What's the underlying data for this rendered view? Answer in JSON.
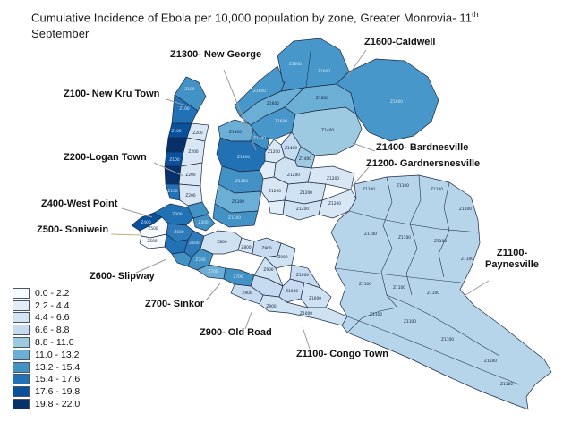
{
  "title": {
    "part1": "Cumulative Incidence of Ebola per 10,000 population by zone,  Greater Monrovia- 11",
    "sup": "th",
    "part2": "September"
  },
  "legend": {
    "items": [
      {
        "label": "0.0 - 2.2",
        "color": "#f7fbff"
      },
      {
        "label": "2.2 - 4.4",
        "color": "#e3edf8"
      },
      {
        "label": "4.4 - 6.6",
        "color": "#d3e4f3"
      },
      {
        "label": "6.6 - 8.8",
        "color": "#c6dbef"
      },
      {
        "label": "8.8 - 11.0",
        "color": "#9ecae1"
      },
      {
        "label": "11.0 - 13.2",
        "color": "#6baed6"
      },
      {
        "label": "13.2 - 15.4",
        "color": "#4292c6"
      },
      {
        "label": "15.4 - 17.6",
        "color": "#2171b5"
      },
      {
        "label": "17.6 - 19.8",
        "color": "#0a519c"
      },
      {
        "label": "19.8 - 22.0",
        "color": "#08306b"
      }
    ]
  },
  "map": {
    "fills": {
      "dark_navy": "#08306b",
      "navy": "#0a519c",
      "deep_blue": "#2171b5",
      "slip_blue": "#2f7ab8",
      "med_blue": "#4292c6",
      "cald_blue": "#4897ca",
      "sky_blue": "#6baed6",
      "pale_blue": "#9ecae1",
      "lighter_blue": "#b6d5ea",
      "pale2": "#c6dbef",
      "pale3": "#cfe2f2",
      "pale4": "#d9e7f5",
      "pale5": "#e3edf8",
      "white_zone": "#f7fbff"
    },
    "callouts": [
      {
        "id": "new-george",
        "text": "Z1300- New George"
      },
      {
        "id": "caldwell",
        "text": "Z1600-Caldwell"
      },
      {
        "id": "new-kru-town",
        "text": "Z100- New Kru Town"
      },
      {
        "id": "logan-town",
        "text": "Z200-Logan Town"
      },
      {
        "id": "bardnesville",
        "text": "Z1400- Bardnesville"
      },
      {
        "id": "gardnersville",
        "text": "Z1200- Gardnersnesville"
      },
      {
        "id": "west-point",
        "text": "Z400-West Point"
      },
      {
        "id": "soniwein",
        "text": "Z500- Soniwein"
      },
      {
        "id": "slipway",
        "text": "Z600- Slipway"
      },
      {
        "id": "sinkor",
        "text": "Z700- Sinkor"
      },
      {
        "id": "old-road",
        "text": "Z900- Old Road"
      },
      {
        "id": "congo-town",
        "text": "Z1100- Congo Town"
      },
      {
        "id": "paynesville",
        "text": "Z1100- Paynesville"
      }
    ],
    "zone_codes": [
      [
        "Z100",
        212,
        101,
        1
      ],
      [
        "Z100",
        206,
        123,
        1
      ],
      [
        "Z100",
        197,
        148,
        1
      ],
      [
        "Z100",
        195,
        180,
        1
      ],
      [
        "Z100",
        193,
        215,
        1
      ],
      [
        "Z200",
        221,
        150
      ],
      [
        "Z200",
        216,
        171
      ],
      [
        "Z200",
        213,
        197
      ],
      [
        "Z200",
        213,
        220
      ],
      [
        "Z1300",
        263,
        149
      ],
      [
        "Z1300",
        290,
        156,
        1
      ],
      [
        "Z1300",
        272,
        177,
        1
      ],
      [
        "Z1300",
        270,
        204,
        1
      ],
      [
        "Z1300",
        266,
        227
      ],
      [
        "Z1300",
        262,
        245,
        1
      ],
      [
        "Z1600",
        290,
        103,
        1
      ],
      [
        "Z1600",
        305,
        117
      ],
      [
        "Z1600",
        314,
        137,
        1
      ],
      [
        "Z1600",
        330,
        73,
        1
      ],
      [
        "Z1600",
        362,
        81,
        1
      ],
      [
        "Z1600",
        360,
        111
      ],
      [
        "Z1600",
        443,
        115,
        1
      ],
      [
        "Z1400",
        366,
        147
      ],
      [
        "Z1400",
        325,
        167
      ],
      [
        "Z1400",
        341,
        179
      ],
      [
        "Z1200",
        306,
        171
      ],
      [
        "Z1200",
        328,
        197
      ],
      [
        "Z1200",
        307,
        215
      ],
      [
        "Z1200",
        342,
        217
      ],
      [
        "Z1200",
        372,
        201
      ],
      [
        "Z1200",
        338,
        235
      ],
      [
        "Z1200",
        374,
        229
      ],
      [
        "Z300",
        198,
        241,
        1
      ],
      [
        "Z300",
        227,
        250,
        1
      ],
      [
        "Z400",
        163,
        250,
        1
      ],
      [
        "Z500",
        171,
        257
      ],
      [
        "Z500",
        170,
        271
      ],
      [
        "Z600",
        200,
        261,
        1
      ],
      [
        "Z600",
        217,
        273,
        1
      ],
      [
        "Z700",
        224,
        292,
        1
      ],
      [
        "Z700",
        238,
        305,
        1
      ],
      [
        "Z700",
        266,
        311,
        1
      ],
      [
        "Z800",
        248,
        272
      ],
      [
        "Z800",
        275,
        278
      ],
      [
        "Z900",
        298,
        279
      ],
      [
        "Z900",
        316,
        289
      ],
      [
        "Z900",
        276,
        329
      ],
      [
        "Z900",
        300,
        303
      ],
      [
        "Z900",
        303,
        344
      ],
      [
        "Z1000",
        326,
        327
      ],
      [
        "Z1000",
        352,
        335
      ],
      [
        "Z1000",
        338,
        309
      ],
      [
        "Z1000",
        342,
        352
      ],
      [
        "Z1100",
        412,
        213
      ],
      [
        "Z1100",
        450,
        209
      ],
      [
        "Z1100",
        488,
        213
      ],
      [
        "Z1100",
        520,
        235
      ],
      [
        "Z1100",
        414,
        263
      ],
      [
        "Z1100",
        452,
        267
      ],
      [
        "Z1100",
        492,
        271
      ],
      [
        "Z1100",
        522,
        291
      ],
      [
        "Z1100",
        408,
        319
      ],
      [
        "Z1100",
        446,
        323
      ],
      [
        "Z1100",
        484,
        329
      ],
      [
        "Z1100",
        420,
        353
      ],
      [
        "Z1100",
        458,
        361
      ],
      [
        "Z1100",
        500,
        381
      ],
      [
        "Z1100",
        548,
        405
      ],
      [
        "Z1100",
        566,
        431
      ]
    ]
  }
}
